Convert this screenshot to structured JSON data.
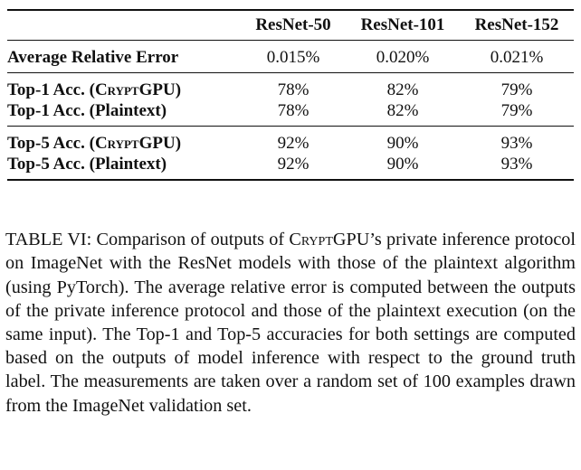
{
  "table": {
    "columns": [
      "ResNet-50",
      "ResNet-101",
      "ResNet-152"
    ],
    "groups": [
      {
        "rows": [
          {
            "label": "Average Relative Error",
            "values": [
              "0.015%",
              "0.020%",
              "0.021%"
            ]
          }
        ]
      },
      {
        "rows": [
          {
            "label_prefix": "Top-1 Acc. (",
            "label_system": "CryptGPU",
            "label_suffix": ")",
            "values": [
              "78%",
              "82%",
              "79%"
            ]
          },
          {
            "label": "Top-1 Acc. (Plaintext)",
            "values": [
              "78%",
              "82%",
              "79%"
            ]
          }
        ]
      },
      {
        "rows": [
          {
            "label_prefix": "Top-5 Acc. (",
            "label_system": "CryptGPU",
            "label_suffix": ")",
            "values": [
              "92%",
              "90%",
              "93%"
            ]
          },
          {
            "label": "Top-5 Acc. (Plaintext)",
            "values": [
              "92%",
              "90%",
              "93%"
            ]
          }
        ]
      }
    ]
  },
  "caption": {
    "label": "TABLE VI: Comparison of outputs of ",
    "system": "CryptGPU",
    "text": "’s private inference protocol on ImageNet with the ResNet models with those of the plaintext algorithm (using PyTorch). The average relative error is computed between the outputs of the private inference protocol and those of the plaintext execution (on the same input). The Top-1 and Top-5 accuracies for both settings are computed based on the outputs of model inference with respect to the ground truth label. The measurements are taken over a random set of 100 examples drawn from the ImageNet validation set."
  }
}
